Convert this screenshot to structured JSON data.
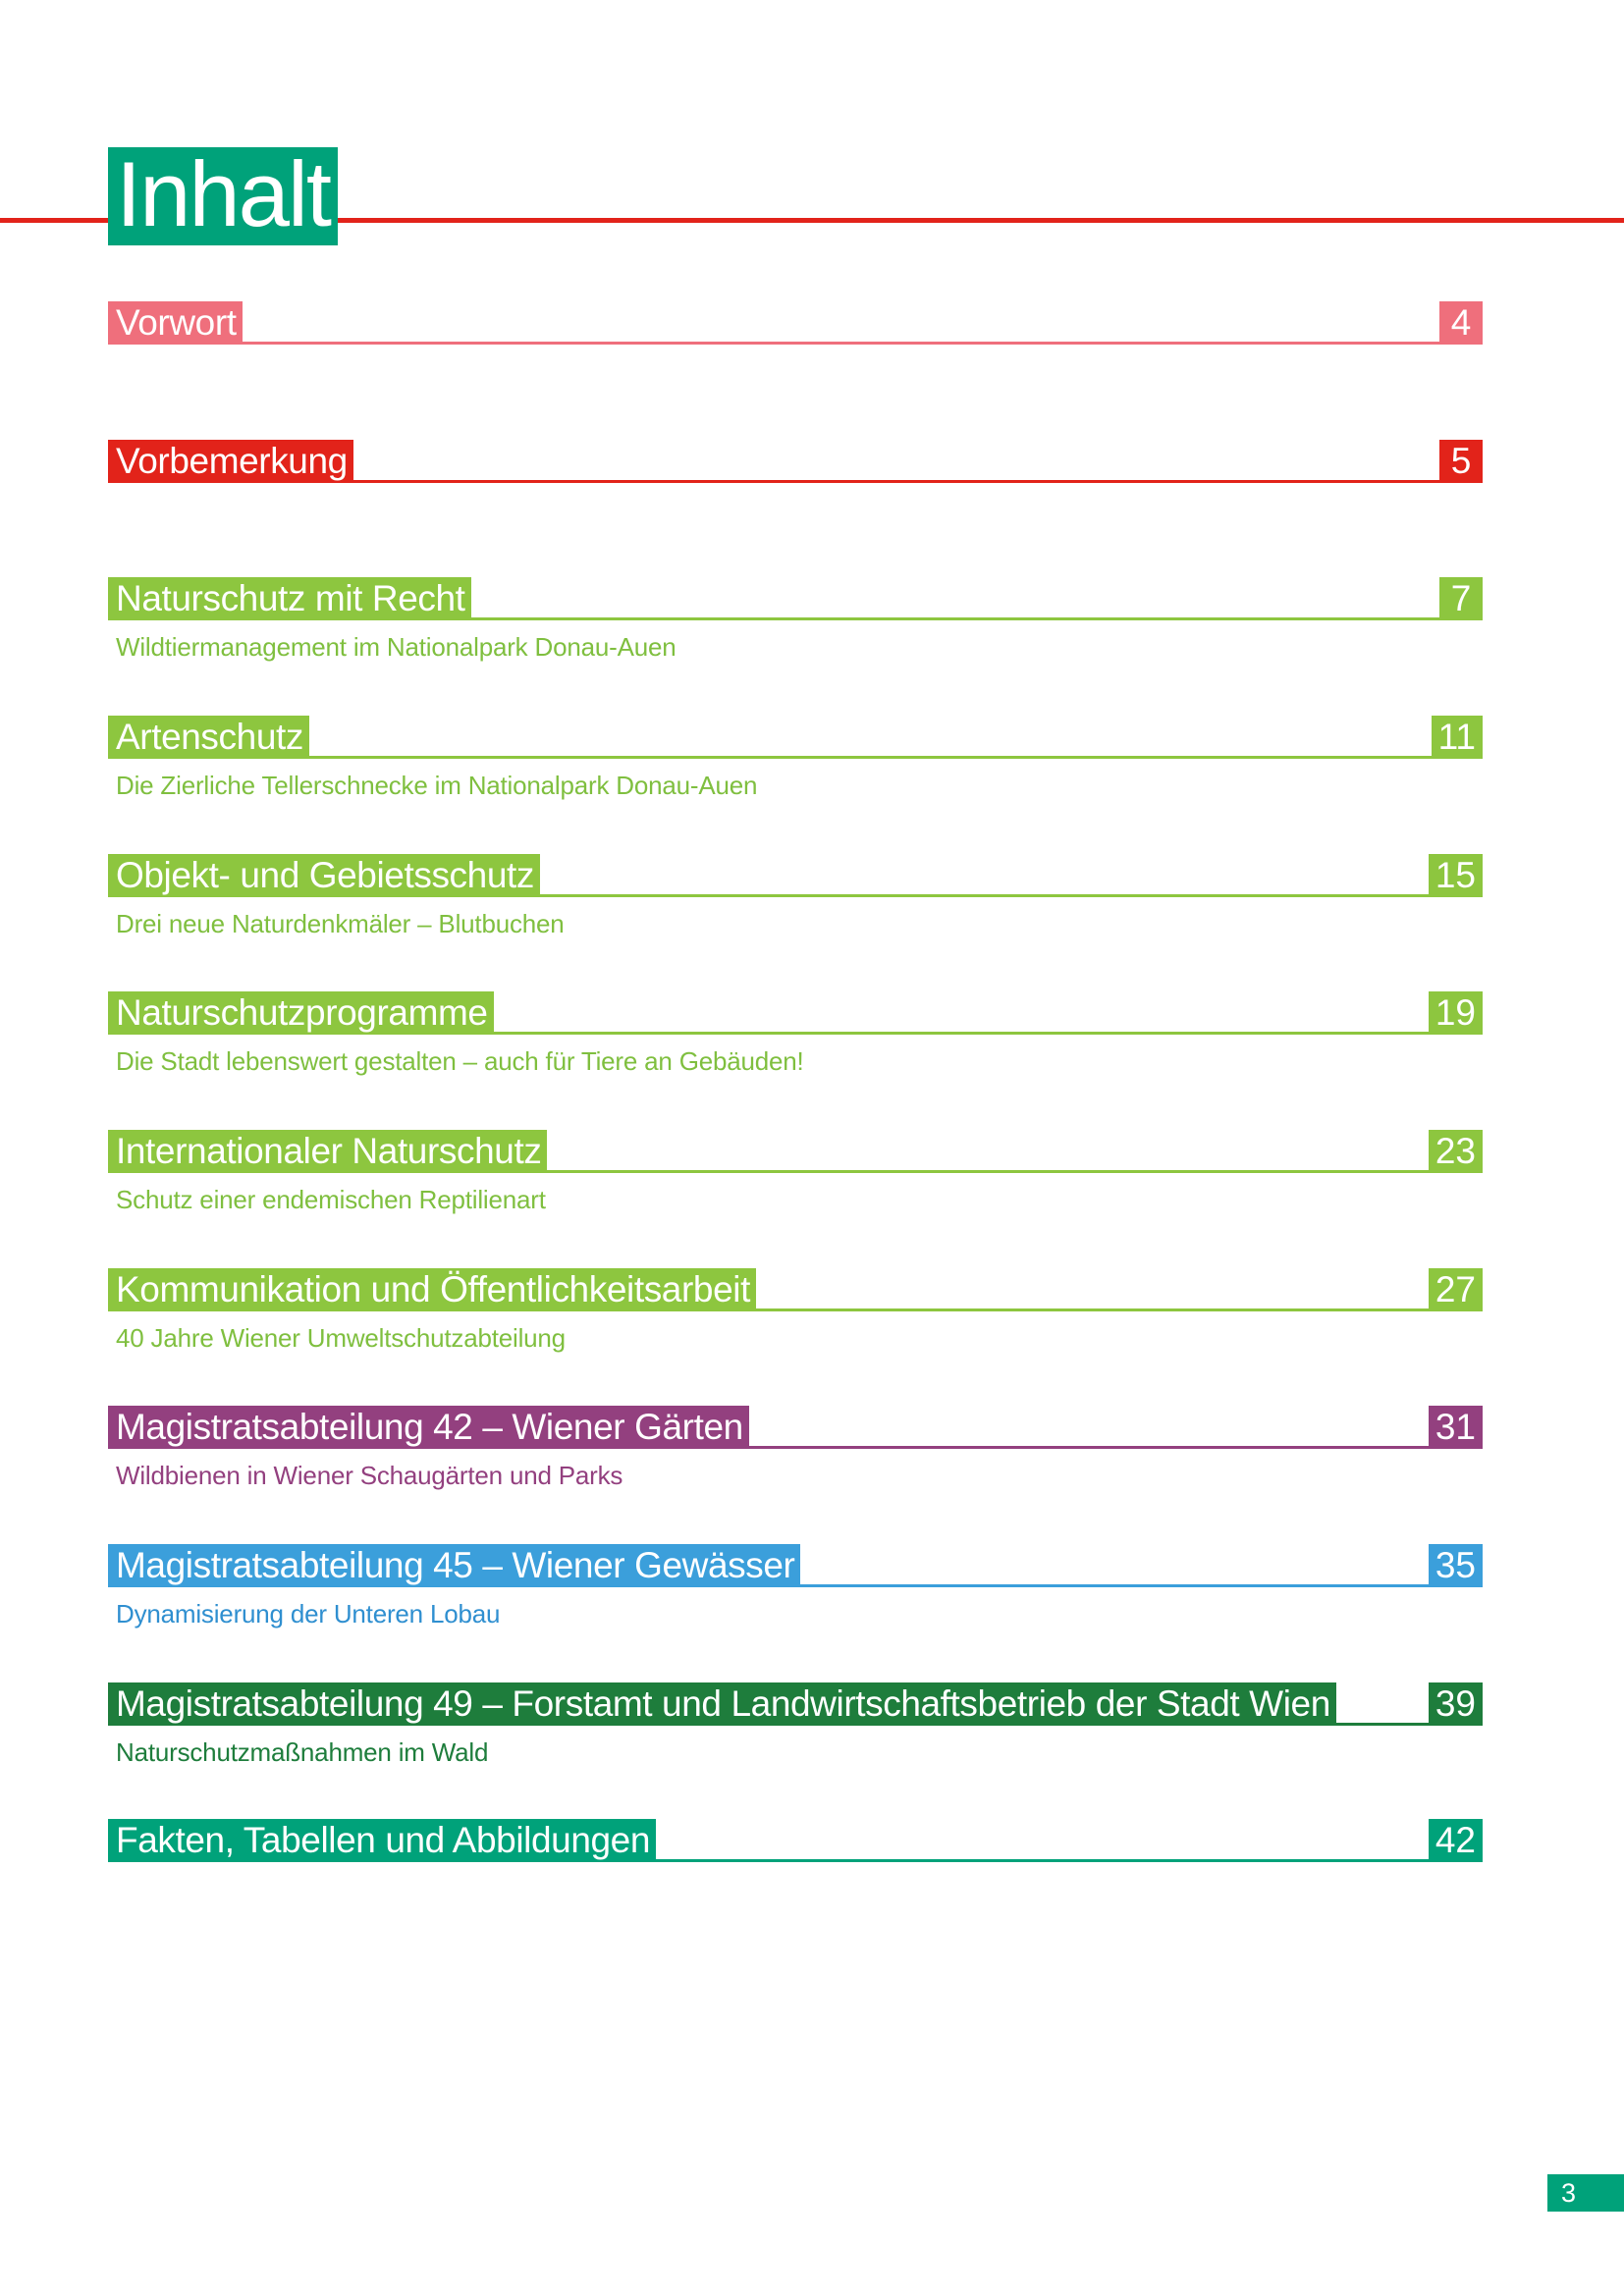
{
  "title": "Inhalt",
  "folio": "3",
  "colors": {
    "title_bg": "#00a27a",
    "title_rule": "#e2231a",
    "folio_bg": "#00a27a"
  },
  "entries": [
    {
      "label": "Vorwort",
      "page": "4",
      "subtitle": "",
      "color": "#ef6f7c",
      "sub_color": "#ef6f7c"
    },
    {
      "label": "Vorbemerkung",
      "page": "5",
      "subtitle": "",
      "color": "#e2231a",
      "sub_color": "#e2231a"
    },
    {
      "label": "Naturschutz mit Recht",
      "page": "7",
      "subtitle": "Wildtiermanagement im Nationalpark Donau-Auen",
      "color": "#8dc63f",
      "sub_color": "#7fbf3f"
    },
    {
      "label": "Artenschutz",
      "page": "11",
      "subtitle": "Die Zierliche Tellerschnecke im Nationalpark Donau-Auen",
      "color": "#8dc63f",
      "sub_color": "#7fbf3f"
    },
    {
      "label": "Objekt- und Gebietsschutz",
      "page": "15",
      "subtitle": "Drei neue Naturdenkmäler – Blutbuchen",
      "color": "#8dc63f",
      "sub_color": "#7fbf3f"
    },
    {
      "label": "Naturschutzprogramme",
      "page": "19",
      "subtitle": "Die Stadt lebenswert gestalten – auch für Tiere an Gebäuden!",
      "color": "#8dc63f",
      "sub_color": "#7fbf3f"
    },
    {
      "label": "Internationaler Naturschutz",
      "page": "23",
      "subtitle": "Schutz einer endemischen Reptilienart",
      "color": "#8dc63f",
      "sub_color": "#7fbf3f"
    },
    {
      "label": "Kommunikation und Öffentlichkeitsarbeit",
      "page": "27",
      "subtitle": "40 Jahre Wiener Umweltschutzabteilung",
      "color": "#8dc63f",
      "sub_color": "#7fbf3f"
    },
    {
      "label": "Magistratsabteilung 42 – Wiener Gärten",
      "page": "31",
      "subtitle": "Wildbienen in Wiener Schaugärten und Parks",
      "color": "#93407f",
      "sub_color": "#93407f"
    },
    {
      "label": "Magistratsabteilung 45 – Wiener Gewässer",
      "page": "35",
      "subtitle": "Dynamisierung der Unteren Lobau",
      "color": "#3b9fdb",
      "sub_color": "#2f8fd0"
    },
    {
      "label": "Magistratsabteilung 49 – Forstamt und Landwirtschaftsbetrieb der Stadt Wien",
      "page": "39",
      "subtitle": "Naturschutzmaßnahmen im Wald",
      "color": "#1e7d3c",
      "sub_color": "#1e7d3c"
    },
    {
      "label": "Fakten, Tabellen und Abbildungen",
      "page": "42",
      "subtitle": "",
      "color": "#00a27a",
      "sub_color": "#00a27a"
    }
  ]
}
